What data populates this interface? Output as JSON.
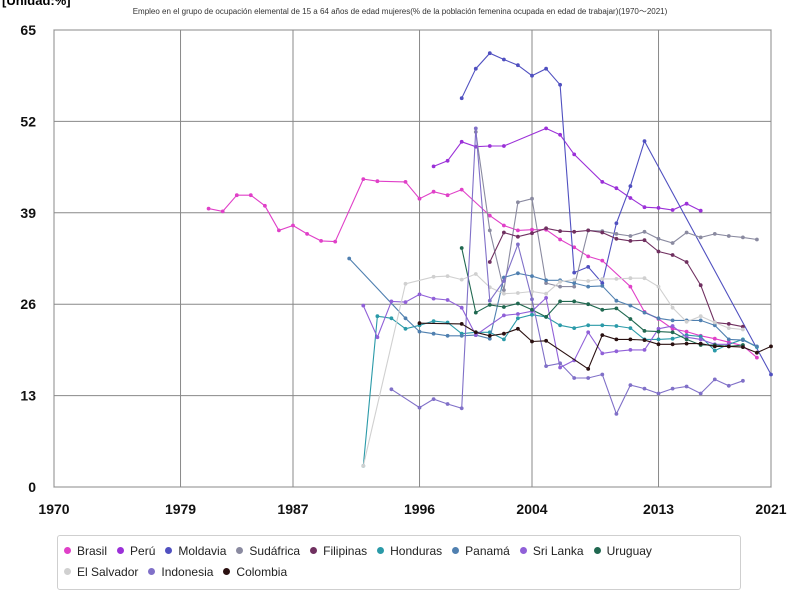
{
  "chart_data": {
    "type": "line",
    "title": "Empleo en el grupo de ocupación elemental de 15 a 64 años de edad mujeres(% de la población femenina ocupada en edad de trabajar)(1970〜2021)",
    "unit_label": "[Unidad:%]",
    "x_ticks": [
      "1970",
      "1979",
      "1987",
      "1996",
      "2004",
      "2013",
      "2021"
    ],
    "y_ticks": [
      "0",
      "13",
      "26",
      "39",
      "52",
      "65"
    ],
    "xlim": [
      1970,
      2021
    ],
    "ylim": [
      0,
      65
    ],
    "grid": true,
    "legend_position": "bottom",
    "series": [
      {
        "name": "Brasil",
        "color": "#e040c8",
        "points": [
          [
            1981,
            39.6
          ],
          [
            1982,
            39.2
          ],
          [
            1983,
            41.5
          ],
          [
            1984,
            41.5
          ],
          [
            1985,
            40
          ],
          [
            1986,
            36.5
          ],
          [
            1987,
            37.2
          ],
          [
            1988,
            36
          ],
          [
            1989,
            35
          ],
          [
            1990,
            34.9
          ],
          [
            1992,
            43.8
          ],
          [
            1993,
            43.5
          ],
          [
            1995,
            43.4
          ],
          [
            1996,
            41
          ],
          [
            1997,
            42
          ],
          [
            1998,
            41.5
          ],
          [
            1999,
            42.3
          ],
          [
            2001,
            38.6
          ],
          [
            2002,
            37.2
          ],
          [
            2003,
            36.5
          ],
          [
            2004,
            36.6
          ],
          [
            2005,
            36.6
          ],
          [
            2006,
            35.2
          ],
          [
            2007,
            34.1
          ],
          [
            2008,
            32.8
          ],
          [
            2009,
            32.2
          ],
          [
            2011,
            28.5
          ],
          [
            2012,
            24.9
          ],
          [
            2013,
            23.9
          ],
          [
            2014,
            22.5
          ],
          [
            2015,
            22.1
          ],
          [
            2016,
            21.5
          ],
          [
            2017,
            21.1
          ],
          [
            2018,
            20.6
          ],
          [
            2019,
            20.1
          ],
          [
            2020,
            18.4
          ]
        ]
      },
      {
        "name": "Perú",
        "color": "#9b30d8",
        "points": [
          [
            1997,
            45.6
          ],
          [
            1998,
            46.4
          ],
          [
            1999,
            49.1
          ],
          [
            2000,
            48.4
          ],
          [
            2001,
            48.5
          ],
          [
            2002,
            48.5
          ],
          [
            2005,
            51
          ],
          [
            2006,
            50.1
          ],
          [
            2007,
            47.3
          ],
          [
            2009,
            43.4
          ],
          [
            2010,
            42.5
          ],
          [
            2011,
            41.1
          ],
          [
            2012,
            39.8
          ],
          [
            2013,
            39.7
          ],
          [
            2014,
            39.4
          ],
          [
            2015,
            40.3
          ],
          [
            2016,
            39.3
          ]
        ]
      },
      {
        "name": "Moldavia",
        "color": "#5050c0",
        "points": [
          [
            1999,
            55.3
          ],
          [
            2000,
            59.5
          ],
          [
            2001,
            61.7
          ],
          [
            2002,
            60.8
          ],
          [
            2003,
            60
          ],
          [
            2004,
            58.5
          ],
          [
            2005,
            59.5
          ],
          [
            2006,
            57.2
          ],
          [
            2007,
            30.5
          ],
          [
            2008,
            31.3
          ],
          [
            2009,
            29
          ],
          [
            2010,
            37.5
          ],
          [
            2011,
            42.8
          ],
          [
            2012,
            49.2
          ],
          [
            2021,
            16
          ]
        ]
      },
      {
        "name": "Sudáfrica",
        "color": "#8a8aa0",
        "points": [
          [
            2000,
            50.5
          ],
          [
            2001,
            36.5
          ],
          [
            2002,
            28
          ],
          [
            2003,
            40.5
          ],
          [
            2004,
            41
          ],
          [
            2005,
            29
          ],
          [
            2006,
            28.5
          ],
          [
            2007,
            28.5
          ],
          [
            2008,
            36.5
          ],
          [
            2009,
            36.4
          ],
          [
            2010,
            36
          ],
          [
            2011,
            35.7
          ],
          [
            2012,
            36.3
          ],
          [
            2013,
            35.3
          ],
          [
            2014,
            34.7
          ],
          [
            2015,
            36.2
          ],
          [
            2016,
            35.5
          ],
          [
            2017,
            36
          ],
          [
            2018,
            35.7
          ],
          [
            2019,
            35.5
          ],
          [
            2020,
            35.2
          ]
        ]
      },
      {
        "name": "Filipinas",
        "color": "#703060",
        "points": [
          [
            2001,
            32
          ],
          [
            2002,
            36.2
          ],
          [
            2003,
            35.6
          ],
          [
            2004,
            36.1
          ],
          [
            2005,
            36.8
          ],
          [
            2006,
            36.4
          ],
          [
            2007,
            36.3
          ],
          [
            2008,
            36.5
          ],
          [
            2009,
            36.2
          ],
          [
            2010,
            35.3
          ],
          [
            2011,
            35
          ],
          [
            2012,
            35.1
          ],
          [
            2013,
            33.5
          ],
          [
            2014,
            33
          ],
          [
            2015,
            32
          ],
          [
            2016,
            28.7
          ],
          [
            2017,
            23.4
          ],
          [
            2018,
            23.2
          ],
          [
            2019,
            22.8
          ]
        ]
      },
      {
        "name": "Honduras",
        "color": "#2a9aa8",
        "points": [
          [
            1992,
            3
          ],
          [
            1993,
            24.3
          ],
          [
            1994,
            24
          ],
          [
            1995,
            22.5
          ],
          [
            1996,
            23
          ],
          [
            1997,
            23.6
          ],
          [
            1998,
            23.4
          ],
          [
            1999,
            21.8
          ],
          [
            2000,
            22
          ],
          [
            2001,
            22
          ],
          [
            2002,
            21
          ],
          [
            2003,
            24
          ],
          [
            2004,
            24.5
          ],
          [
            2005,
            24.2
          ],
          [
            2006,
            23
          ],
          [
            2007,
            22.6
          ],
          [
            2008,
            23
          ],
          [
            2009,
            23
          ],
          [
            2010,
            22.9
          ],
          [
            2011,
            22.6
          ],
          [
            2012,
            21
          ],
          [
            2013,
            21
          ],
          [
            2014,
            21.1
          ],
          [
            2015,
            21.6
          ],
          [
            2016,
            21.4
          ],
          [
            2017,
            19.4
          ],
          [
            2018,
            20.3
          ],
          [
            2019,
            21
          ],
          [
            2020,
            19.9
          ]
        ]
      },
      {
        "name": "Panamá",
        "color": "#5080b0",
        "points": [
          [
            1991,
            32.5
          ],
          [
            1995,
            24
          ],
          [
            1996,
            22.1
          ],
          [
            1997,
            21.8
          ],
          [
            1998,
            21.5
          ],
          [
            1999,
            21.5
          ],
          [
            2000,
            21.6
          ],
          [
            2001,
            21.1
          ],
          [
            2002,
            29.8
          ],
          [
            2003,
            30.4
          ],
          [
            2004,
            30
          ],
          [
            2005,
            29.4
          ],
          [
            2006,
            29.4
          ],
          [
            2007,
            29
          ],
          [
            2008,
            28.5
          ],
          [
            2009,
            28.6
          ],
          [
            2010,
            26.5
          ],
          [
            2011,
            25.8
          ],
          [
            2012,
            24.8
          ],
          [
            2013,
            24
          ],
          [
            2014,
            23.7
          ],
          [
            2015,
            23.7
          ],
          [
            2016,
            23.7
          ],
          [
            2017,
            23
          ],
          [
            2018,
            21
          ],
          [
            2019,
            20.9
          ],
          [
            2020,
            20
          ]
        ]
      },
      {
        "name": "Sri Lanka",
        "color": "#9060d8",
        "points": [
          [
            1992,
            25.8
          ],
          [
            1993,
            21.3
          ],
          [
            1994,
            26.4
          ],
          [
            1995,
            26.3
          ],
          [
            1996,
            27.4
          ],
          [
            1997,
            26.8
          ],
          [
            1998,
            26.6
          ],
          [
            1999,
            25.5
          ],
          [
            2000,
            21.6
          ],
          [
            2002,
            24.4
          ],
          [
            2003,
            24.6
          ],
          [
            2004,
            25
          ],
          [
            2005,
            26.9
          ],
          [
            2006,
            17
          ],
          [
            2007,
            18
          ],
          [
            2008,
            22
          ],
          [
            2009,
            19
          ],
          [
            2010,
            19.3
          ],
          [
            2011,
            19.5
          ],
          [
            2012,
            19.5
          ],
          [
            2013,
            22.5
          ],
          [
            2014,
            22.9
          ],
          [
            2015,
            21.3
          ],
          [
            2016,
            21
          ],
          [
            2017,
            20.3
          ],
          [
            2018,
            20.3
          ]
        ]
      },
      {
        "name": "Uruguay",
        "color": "#206850",
        "points": [
          [
            1999,
            34
          ],
          [
            2000,
            24.8
          ],
          [
            2001,
            25.9
          ],
          [
            2002,
            25.6
          ],
          [
            2003,
            26.1
          ],
          [
            2004,
            25.2
          ],
          [
            2005,
            24.2
          ],
          [
            2006,
            26.4
          ],
          [
            2007,
            26.4
          ],
          [
            2008,
            26
          ],
          [
            2009,
            25.2
          ],
          [
            2010,
            25.4
          ],
          [
            2011,
            23.9
          ],
          [
            2012,
            22.2
          ],
          [
            2013,
            22.1
          ],
          [
            2014,
            22
          ],
          [
            2015,
            21
          ],
          [
            2016,
            20.2
          ],
          [
            2017,
            20.2
          ],
          [
            2018,
            20
          ],
          [
            2019,
            20.2
          ]
        ]
      },
      {
        "name": "El Salvador",
        "color": "#d0d0d0",
        "points": [
          [
            1992,
            3
          ],
          [
            1995,
            28.9
          ],
          [
            1997,
            29.9
          ],
          [
            1998,
            30
          ],
          [
            1999,
            29.5
          ],
          [
            2000,
            30.3
          ],
          [
            2001,
            28.4
          ],
          [
            2002,
            27.5
          ],
          [
            2003,
            27.6
          ],
          [
            2004,
            27.8
          ],
          [
            2005,
            27.5
          ],
          [
            2006,
            29.2
          ],
          [
            2007,
            29.5
          ],
          [
            2008,
            29.3
          ],
          [
            2009,
            29.6
          ],
          [
            2010,
            29.6
          ],
          [
            2011,
            29.7
          ],
          [
            2012,
            29.7
          ],
          [
            2013,
            28.5
          ],
          [
            2014,
            25.5
          ],
          [
            2015,
            23.5
          ],
          [
            2016,
            24.3
          ],
          [
            2017,
            23.4
          ],
          [
            2018,
            22.6
          ],
          [
            2019,
            22.4
          ]
        ]
      },
      {
        "name": "Indonesia",
        "color": "#8070c8",
        "points": [
          [
            1994,
            13.9
          ],
          [
            1996,
            11.3
          ],
          [
            1997,
            12.5
          ],
          [
            1998,
            11.8
          ],
          [
            1999,
            11.2
          ],
          [
            2000,
            51
          ],
          [
            2001,
            26.5
          ],
          [
            2002,
            29.3
          ],
          [
            2003,
            34.5
          ],
          [
            2004,
            26.7
          ],
          [
            2005,
            17.2
          ],
          [
            2006,
            17.6
          ],
          [
            2007,
            15.5
          ],
          [
            2008,
            15.5
          ],
          [
            2009,
            16
          ],
          [
            2010,
            10.4
          ],
          [
            2011,
            14.5
          ],
          [
            2012,
            14
          ],
          [
            2013,
            13.3
          ],
          [
            2014,
            14
          ],
          [
            2015,
            14.3
          ],
          [
            2016,
            13.3
          ],
          [
            2017,
            15.3
          ],
          [
            2018,
            14.4
          ],
          [
            2019,
            15.1
          ]
        ]
      },
      {
        "name": "Colombia",
        "color": "#2a1010",
        "points": [
          [
            1996,
            23.3
          ],
          [
            1999,
            23.2
          ],
          [
            2000,
            22
          ],
          [
            2001,
            21.5
          ],
          [
            2002,
            21.8
          ],
          [
            2003,
            22.5
          ],
          [
            2004,
            20.7
          ],
          [
            2005,
            20.8
          ],
          [
            2008,
            16.8
          ],
          [
            2009,
            21.6
          ],
          [
            2010,
            21
          ],
          [
            2011,
            21
          ],
          [
            2012,
            20.9
          ],
          [
            2013,
            20.3
          ],
          [
            2014,
            20.3
          ],
          [
            2015,
            20.4
          ],
          [
            2016,
            20.4
          ],
          [
            2017,
            20
          ],
          [
            2018,
            20
          ],
          [
            2019,
            19.9
          ],
          [
            2020,
            19.1
          ],
          [
            2021,
            20
          ]
        ]
      }
    ]
  }
}
